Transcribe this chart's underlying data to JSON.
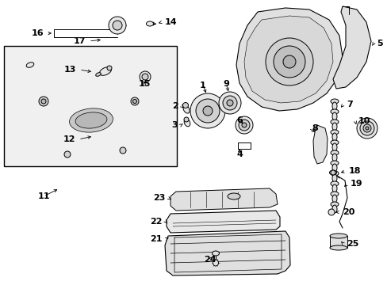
{
  "white": "#ffffff",
  "black": "#000000",
  "fig_width": 4.89,
  "fig_height": 3.6,
  "dpi": 100,
  "labels": {
    "1": [
      258,
      108,
      261,
      118,
      "right"
    ],
    "2": [
      229,
      136,
      235,
      143,
      "right"
    ],
    "3": [
      228,
      158,
      234,
      152,
      "right"
    ],
    "4": [
      303,
      195,
      303,
      188,
      "center"
    ],
    "5": [
      448,
      48,
      442,
      55,
      "left"
    ],
    "6": [
      303,
      168,
      310,
      165,
      "center"
    ],
    "7": [
      435,
      135,
      428,
      140,
      "left"
    ],
    "8": [
      400,
      165,
      406,
      168,
      "left"
    ],
    "9": [
      287,
      108,
      290,
      118,
      "right"
    ],
    "10": [
      455,
      158,
      446,
      162,
      "left"
    ],
    "11": [
      55,
      248,
      65,
      238,
      "center"
    ],
    "12": [
      100,
      178,
      118,
      172,
      "right"
    ],
    "13": [
      100,
      88,
      115,
      93,
      "right"
    ],
    "14": [
      210,
      30,
      200,
      34,
      "left"
    ],
    "15": [
      185,
      105,
      185,
      98,
      "center"
    ],
    "16": [
      57,
      42,
      68,
      42,
      "right"
    ],
    "17": [
      110,
      52,
      128,
      50,
      "right"
    ],
    "18": [
      440,
      218,
      432,
      222,
      "left"
    ],
    "19": [
      442,
      232,
      434,
      238,
      "left"
    ],
    "20": [
      430,
      268,
      422,
      268,
      "left"
    ],
    "21": [
      210,
      302,
      222,
      298,
      "right"
    ],
    "22": [
      210,
      282,
      222,
      278,
      "right"
    ],
    "23": [
      210,
      248,
      225,
      252,
      "right"
    ],
    "24": [
      268,
      328,
      272,
      320,
      "center"
    ],
    "25": [
      435,
      310,
      425,
      305,
      "left"
    ]
  }
}
